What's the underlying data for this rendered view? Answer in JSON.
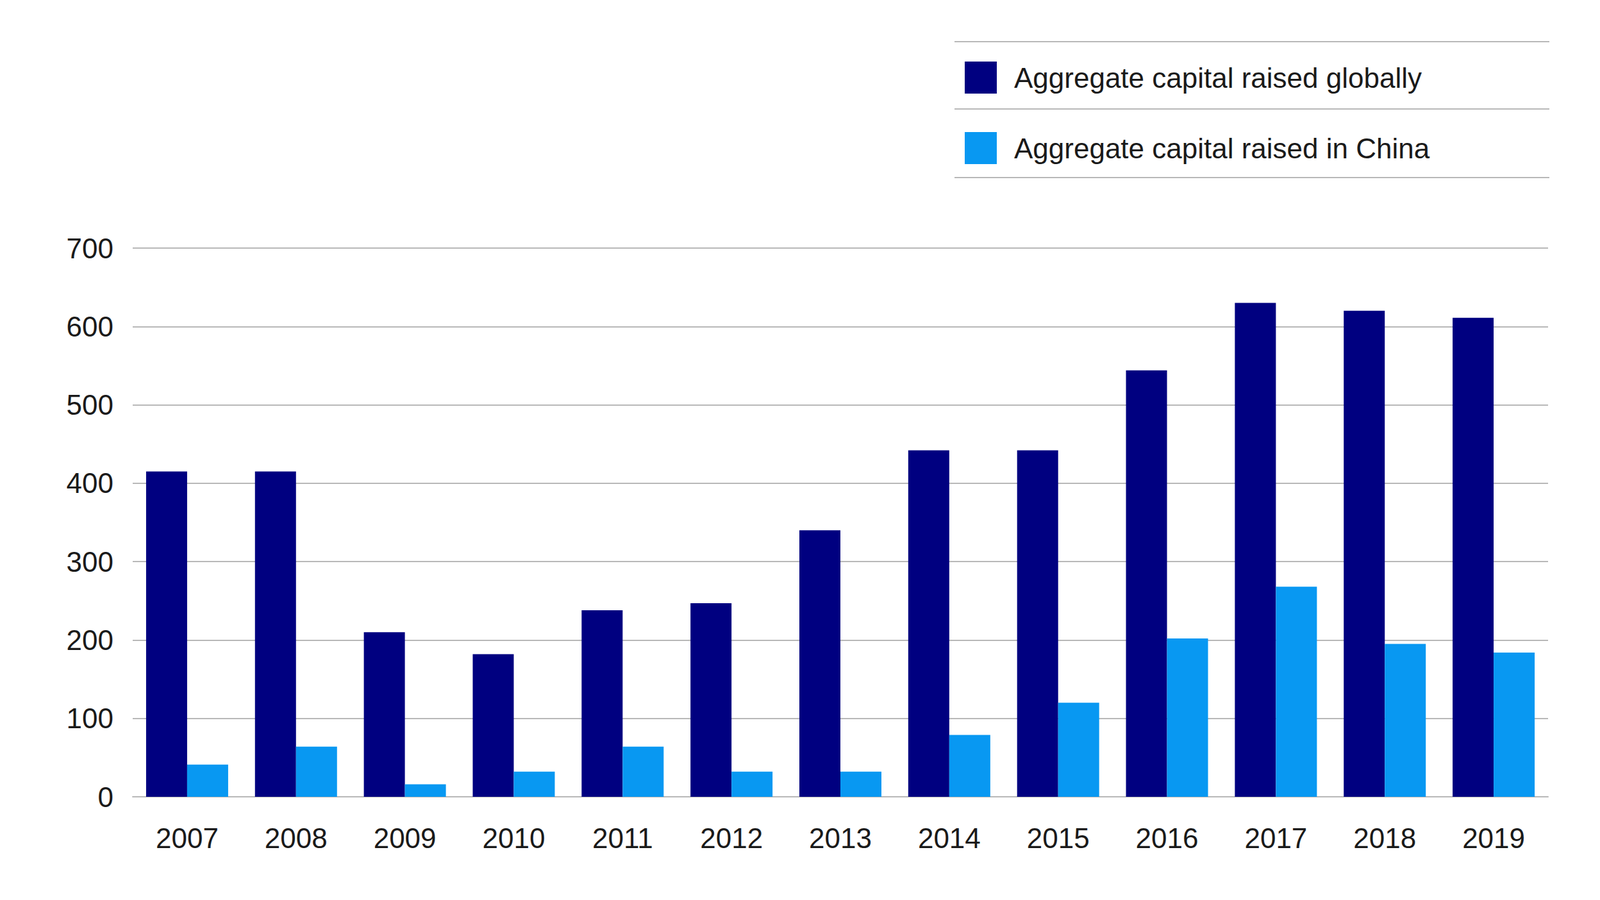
{
  "chart_data": {
    "type": "bar",
    "categories": [
      "2007",
      "2008",
      "2009",
      "2010",
      "2011",
      "2012",
      "2013",
      "2014",
      "2015",
      "2016",
      "2017",
      "2018",
      "2019"
    ],
    "series": [
      {
        "name": "Aggregate capital raised globally",
        "color": "#000080",
        "values": [
          415,
          415,
          210,
          182,
          238,
          247,
          340,
          442,
          442,
          544,
          630,
          620,
          611
        ]
      },
      {
        "name": "Aggregate capital raised in China",
        "color": "#0898f2",
        "values": [
          41,
          64,
          16,
          32,
          64,
          32,
          32,
          79,
          120,
          202,
          268,
          195,
          184
        ]
      }
    ],
    "ylim": [
      0,
      700
    ],
    "yticks": [
      0,
      100,
      200,
      300,
      400,
      500,
      600,
      700
    ],
    "grid": true,
    "legend": "upper right"
  }
}
